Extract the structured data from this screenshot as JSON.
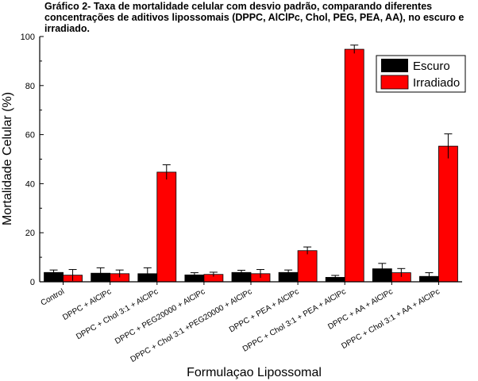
{
  "title": "Gráfico 2- Taxa de mortalidade celular com desvio padrão, comparando diferentes concentrações de aditivos lipossomais (DPPC, AlClPc, Chol, PEG, PEA, AA), no escuro e irradiado.",
  "colors": {
    "escuro": "#000000",
    "irradiado": "#ff0000"
  },
  "chart_data": {
    "type": "bar",
    "title": "Gráfico 2- Taxa de mortalidade celular com desvio padrão, comparando diferentes concentrações de aditivos lipossomais (DPPC, AlClPc, Chol, PEG, PEA, AA), no escuro e irradiado.",
    "xlabel": "Formulaçao Lipossomal",
    "ylabel": "Mortalidade Celular (%)",
    "ylim": [
      0,
      100
    ],
    "yticks": [
      0,
      20,
      40,
      60,
      80,
      100
    ],
    "grid": false,
    "legend_position": "top-right",
    "categories": [
      "Control",
      "DPPC + AlClPc",
      "DPPC + Chol 3:1 + AlClPc",
      "DPPC + PEG20000 + AlClPc",
      "DPPC + Chol 3:1 +PEG20000 + AlClPc",
      "DPPC + PEA + AlClPc",
      "DPPC + Chol 3:1 + PEA + AlClPc",
      "DPPC + AA + AlClPc",
      "DPPC + Chol 3:1 + AA + AlClPc"
    ],
    "series": [
      {
        "name": "Escuro",
        "values": [
          3.8,
          3.5,
          3.3,
          2.8,
          3.8,
          3.8,
          1.8,
          5.3,
          2.2
        ],
        "errors": [
          1.0,
          2.2,
          2.4,
          0.9,
          0.9,
          1.0,
          0.8,
          2.2,
          1.5
        ]
      },
      {
        "name": "Irradiado",
        "values": [
          2.7,
          3.3,
          44.7,
          3.0,
          3.3,
          12.7,
          94.8,
          3.7,
          55.3
        ],
        "errors": [
          2.3,
          1.5,
          3.0,
          0.9,
          1.7,
          1.5,
          1.7,
          1.7,
          5.0
        ]
      }
    ]
  }
}
